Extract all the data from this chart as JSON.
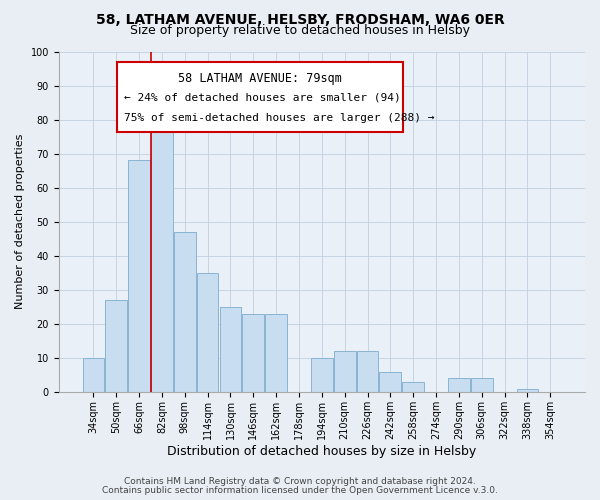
{
  "title": "58, LATHAM AVENUE, HELSBY, FRODSHAM, WA6 0ER",
  "subtitle": "Size of property relative to detached houses in Helsby",
  "xlabel": "Distribution of detached houses by size in Helsby",
  "ylabel": "Number of detached properties",
  "categories": [
    "34sqm",
    "50sqm",
    "66sqm",
    "82sqm",
    "98sqm",
    "114sqm",
    "130sqm",
    "146sqm",
    "162sqm",
    "178sqm",
    "194sqm",
    "210sqm",
    "226sqm",
    "242sqm",
    "258sqm",
    "274sqm",
    "290sqm",
    "306sqm",
    "322sqm",
    "338sqm",
    "354sqm"
  ],
  "values": [
    10,
    27,
    68,
    78,
    47,
    35,
    25,
    23,
    23,
    0,
    10,
    12,
    12,
    6,
    3,
    0,
    4,
    4,
    0,
    1,
    0
  ],
  "bar_color": "#c8ddf0",
  "bar_edge_color": "#8ab4d4",
  "vline_color": "#cc0000",
  "ylim": [
    0,
    100
  ],
  "yticks": [
    0,
    10,
    20,
    30,
    40,
    50,
    60,
    70,
    80,
    90,
    100
  ],
  "annotation_title": "58 LATHAM AVENUE: 79sqm",
  "annotation_line1": "← 24% of detached houses are smaller (94)",
  "annotation_line2": "75% of semi-detached houses are larger (288) →",
  "box_facecolor": "#ffffff",
  "box_edgecolor": "#cc0000",
  "footer1": "Contains HM Land Registry data © Crown copyright and database right 2024.",
  "footer2": "Contains public sector information licensed under the Open Government Licence v.3.0.",
  "fig_facecolor": "#e8eef4",
  "plot_facecolor": "#eaf0f8",
  "grid_color": "#c0cfe0",
  "title_fontsize": 10,
  "subtitle_fontsize": 9,
  "xlabel_fontsize": 9,
  "ylabel_fontsize": 8,
  "tick_fontsize": 7,
  "footer_fontsize": 6.5,
  "annotation_title_fontsize": 8.5,
  "annotation_body_fontsize": 8
}
